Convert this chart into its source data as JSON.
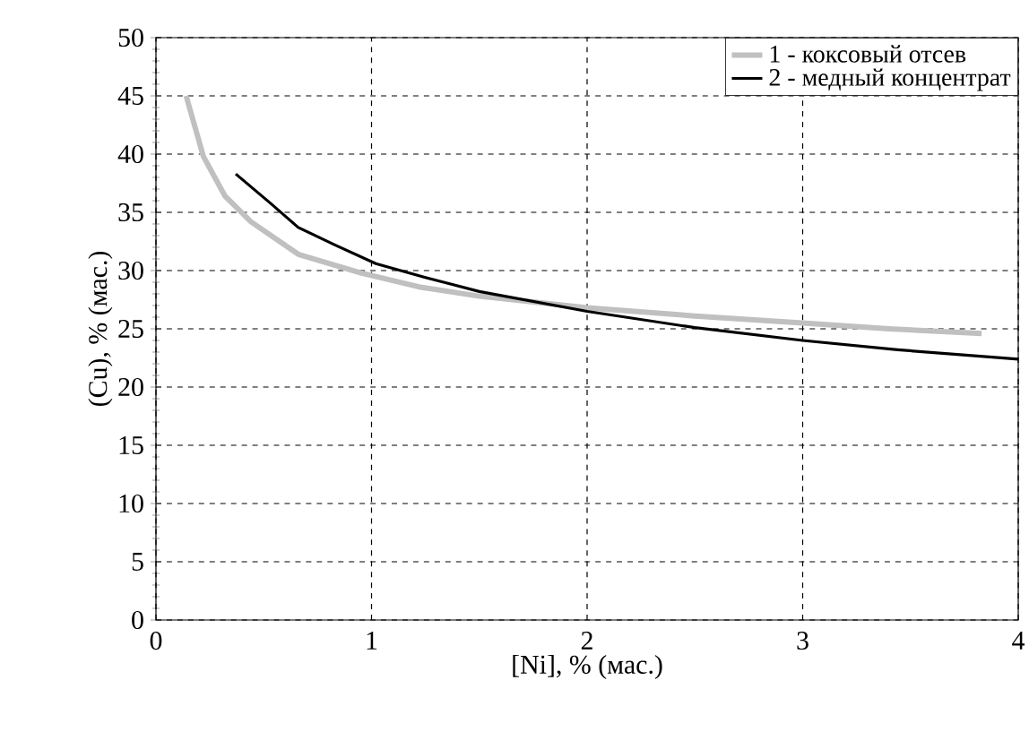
{
  "chart_data": {
    "type": "line",
    "xlabel": "[Ni], % (мас.)",
    "ylabel": "(Cu), % (мас.)",
    "xlim": [
      0,
      4
    ],
    "ylim": [
      0,
      50
    ],
    "xticks": [
      0,
      1,
      2,
      3,
      4
    ],
    "yticks": [
      0,
      5,
      10,
      15,
      20,
      25,
      30,
      35,
      40,
      45,
      50
    ],
    "grid": true,
    "legend": "top right",
    "marker": "none",
    "line_style": "solid",
    "series": [
      {
        "name": "1 - коксовый отсев",
        "color": "#c0c0c0",
        "x": [
          0.14,
          0.22,
          0.32,
          0.44,
          0.66,
          0.95,
          1.22,
          1.5,
          2,
          2.5,
          3,
          3.4,
          3.83
        ],
        "values": [
          45,
          39.8,
          36.4,
          34.2,
          31.4,
          29.8,
          28.6,
          27.8,
          26.8,
          26.1,
          25.5,
          25,
          24.6
        ]
      },
      {
        "name": "2 - медный концентрат",
        "color": "#000000",
        "x": [
          0.37,
          0.53,
          0.66,
          0.83,
          1.02,
          1.25,
          1.5,
          2,
          2.5,
          3,
          3.44,
          4
        ],
        "values": [
          38.3,
          35.8,
          33.7,
          32.2,
          30.6,
          29.4,
          28.2,
          26.5,
          25.1,
          24,
          23.2,
          22.4
        ]
      }
    ]
  }
}
